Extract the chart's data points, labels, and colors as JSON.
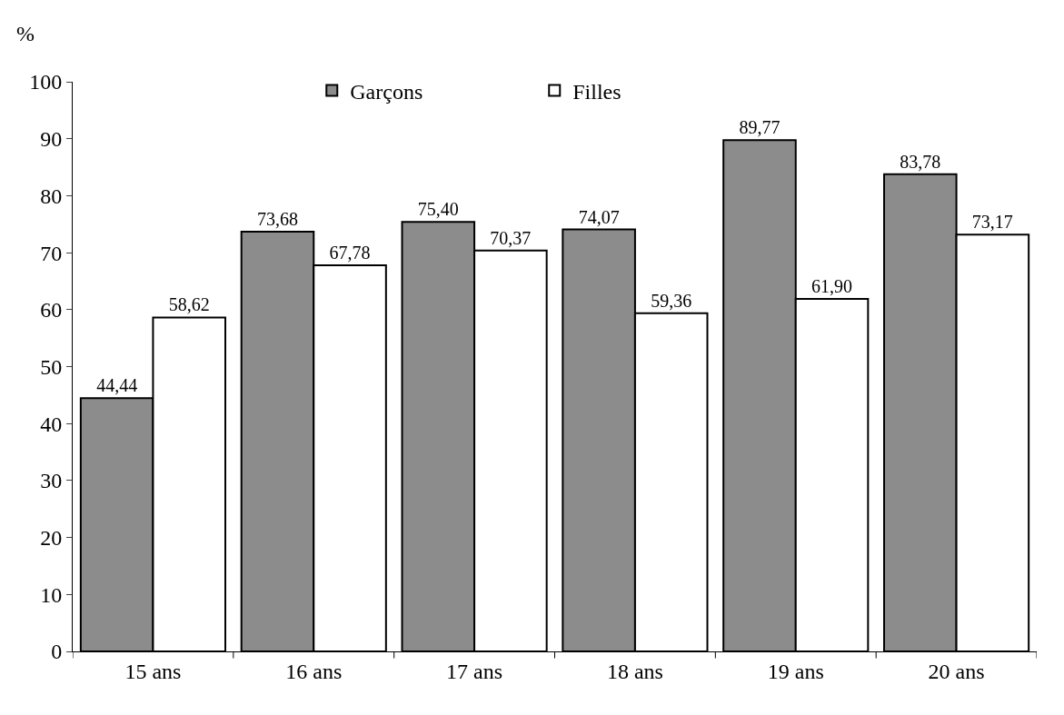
{
  "chart_data": {
    "type": "bar",
    "ylabel": "%",
    "categories": [
      "15 ans",
      "16 ans",
      "17 ans",
      "18 ans",
      "19 ans",
      "20 ans"
    ],
    "series": [
      {
        "name": "Garçons",
        "color": "#8c8c8c",
        "values": [
          44.44,
          73.68,
          75.4,
          74.07,
          89.77,
          83.78
        ],
        "value_labels": [
          "44,44",
          "73,68",
          "75,40",
          "74,07",
          "89,77",
          "83,78"
        ]
      },
      {
        "name": "Filles",
        "color": "#ffffff",
        "values": [
          58.62,
          67.78,
          70.37,
          59.36,
          61.9,
          73.17
        ],
        "value_labels": [
          "58,62",
          "67,78",
          "70,37",
          "59,36",
          "61,90",
          "73,17"
        ]
      }
    ],
    "ylim": [
      0,
      100
    ],
    "yticks": [
      0,
      10,
      20,
      30,
      40,
      50,
      60,
      70,
      80,
      90,
      100
    ],
    "legend": "top"
  }
}
